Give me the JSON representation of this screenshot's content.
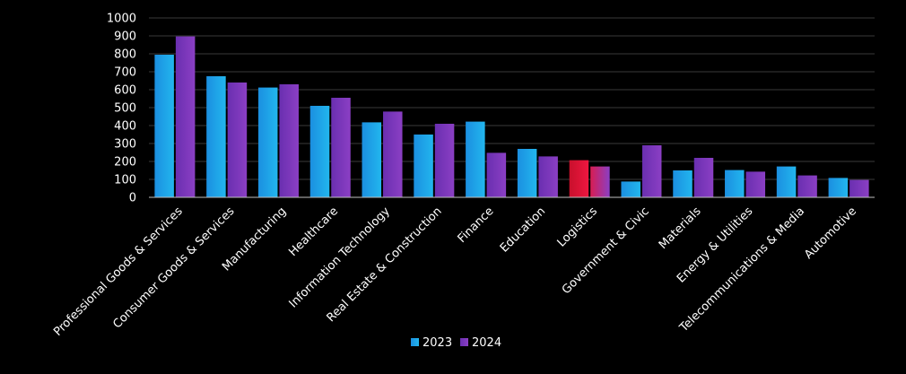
{
  "chart_data": {
    "type": "bar",
    "title": "",
    "xlabel": "",
    "ylabel": "",
    "ylim": [
      0,
      1000
    ],
    "yticks": [
      0,
      100,
      200,
      300,
      400,
      500,
      600,
      700,
      800,
      900,
      1000
    ],
    "grid": true,
    "legend_position": "bottom",
    "categories": [
      "Professional Goods & Services",
      "Consumer Goods & Services",
      "Manufacturing",
      "Healthcare",
      "Information Technology",
      "Real Estate & Construction",
      "Finance",
      "Education",
      "Logistics",
      "Government & Civic",
      "Materials",
      "Energy & Utilities",
      "Telecommunications & Media",
      "Automotive"
    ],
    "series": [
      {
        "name": "2023",
        "color": "#1ea7e8",
        "values": [
          795,
          675,
          612,
          510,
          418,
          350,
          422,
          270,
          207,
          88,
          150,
          152,
          172,
          108
        ]
      },
      {
        "name": "2024",
        "color": "#7a35b8",
        "values": [
          897,
          640,
          630,
          555,
          478,
          410,
          248,
          228,
          172,
          290,
          220,
          143,
          122,
          97
        ]
      }
    ],
    "highlight": {
      "category": "Logistics",
      "series": "2023",
      "color": "#e0102e"
    }
  }
}
